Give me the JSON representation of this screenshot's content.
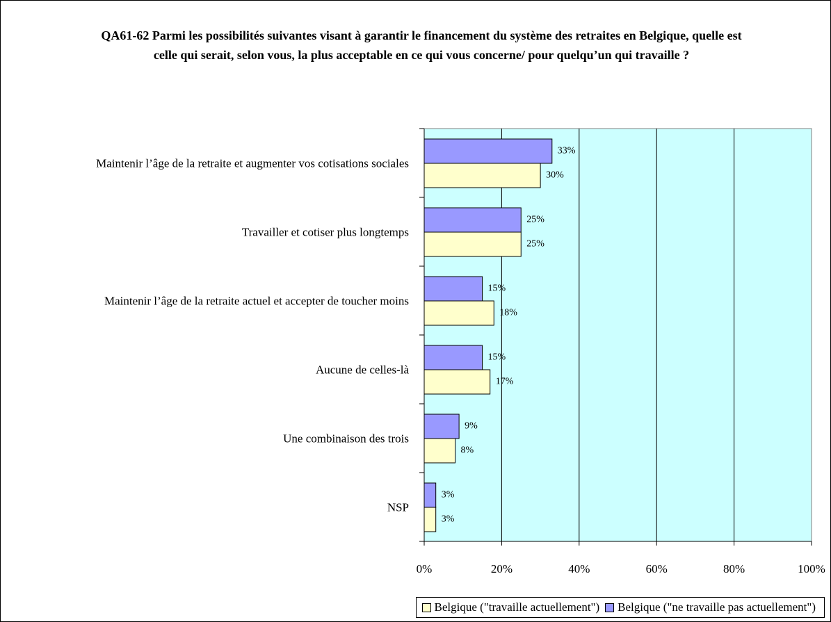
{
  "chart_data": {
    "type": "bar",
    "orientation": "horizontal",
    "title": "QA61-62 Parmi les possibilités suivantes visant à garantir le financement du système des retraites en Belgique, quelle est celle qui serait, selon vous, la plus acceptable en ce qui vous concerne/ pour quelqu’un qui travaille ?",
    "categories": [
      "Maintenir l’âge de la retraite et augmenter vos cotisations sociales",
      "Travailler et cotiser plus longtemps",
      "Maintenir l’âge de la retraite actuel et accepter de toucher moins",
      "Aucune de celles-là",
      "Une combinaison des trois",
      "NSP"
    ],
    "series": [
      {
        "name": "Belgique (\"travaille actuellement\")",
        "color": "#ffffcc",
        "values": [
          30,
          25,
          18,
          17,
          8,
          3
        ],
        "value_labels": [
          "30%",
          "25%",
          "18%",
          "17%",
          "8%",
          "3%"
        ]
      },
      {
        "name": "Belgique (\"ne travaille pas actuellement\")",
        "color": "#9999ff",
        "values": [
          33,
          25,
          15,
          15,
          9,
          3
        ],
        "value_labels": [
          "33%",
          "25%",
          "15%",
          "15%",
          "9%",
          "3%"
        ]
      }
    ],
    "xlim": [
      0,
      100
    ],
    "xticks": [
      {
        "value": 0,
        "label": "0%"
      },
      {
        "value": 20,
        "label": "20%"
      },
      {
        "value": 40,
        "label": "40%"
      },
      {
        "value": 60,
        "label": "60%"
      },
      {
        "value": 80,
        "label": "80%"
      },
      {
        "value": 100,
        "label": "100%"
      }
    ],
    "grid": true,
    "plot_background": "#ccffff",
    "legend": "bottom-right"
  }
}
